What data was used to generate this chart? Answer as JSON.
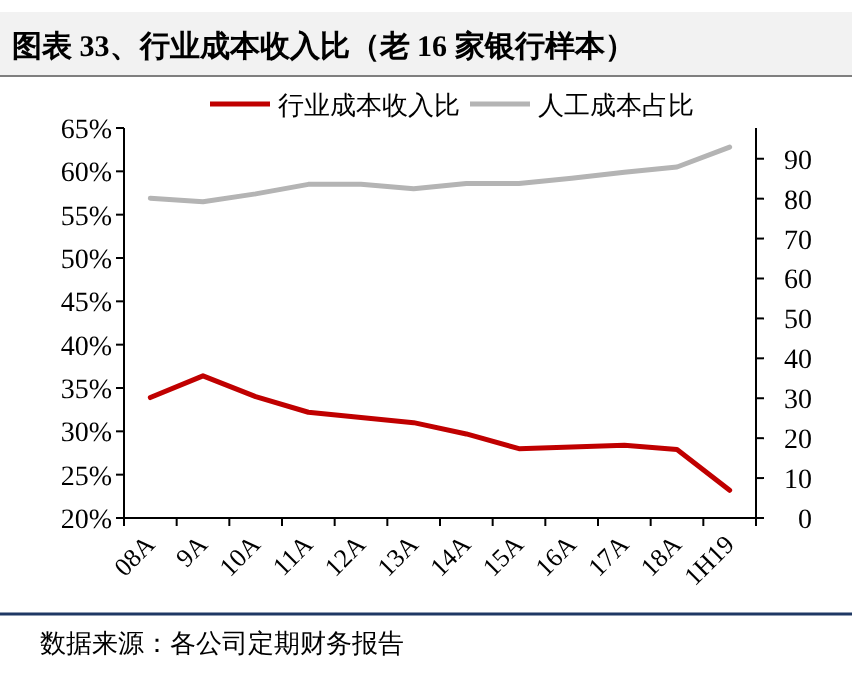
{
  "chart_data": {
    "type": "line",
    "title": "图表 33、行业成本收入比（老 16 家银行样本）",
    "categories": [
      "08A",
      "9A",
      "10A",
      "11A",
      "12A",
      "13A",
      "14A",
      "15A",
      "16A",
      "17A",
      "18A",
      "1H19"
    ],
    "series": [
      {
        "name": "行业成本收入比",
        "color": "#c00000",
        "values": [
          33.9,
          36.4,
          34.0,
          32.2,
          31.6,
          31.0,
          29.7,
          28.0,
          28.2,
          28.4,
          27.9,
          23.2
        ]
      },
      {
        "name": "人工成本占比",
        "color": "#b4b4b4",
        "values": [
          56.9,
          56.5,
          57.4,
          58.5,
          58.5,
          58.0,
          58.6,
          58.6,
          59.2,
          59.9,
          60.5,
          62.8
        ]
      }
    ],
    "ylim": [
      20,
      65
    ],
    "yticks": [
      {
        "value": 20,
        "label": "20%"
      },
      {
        "value": 25,
        "label": "25%"
      },
      {
        "value": 30,
        "label": "30%"
      },
      {
        "value": 35,
        "label": "35%"
      },
      {
        "value": 40,
        "label": "40%"
      },
      {
        "value": 45,
        "label": "45%"
      },
      {
        "value": 50,
        "label": "50%"
      },
      {
        "value": 55,
        "label": "55%"
      },
      {
        "value": 60,
        "label": "60%"
      },
      {
        "value": 65,
        "label": "65%"
      }
    ],
    "y2lim": [
      0,
      97.7
    ],
    "y2ticks": [
      0,
      10,
      20,
      30,
      40,
      50,
      60,
      70,
      80,
      90
    ],
    "legend": "top",
    "grid": false,
    "marker": "none",
    "line_style": "solid",
    "annotations": [
      "数据来源：各公司定期财务报告"
    ]
  }
}
